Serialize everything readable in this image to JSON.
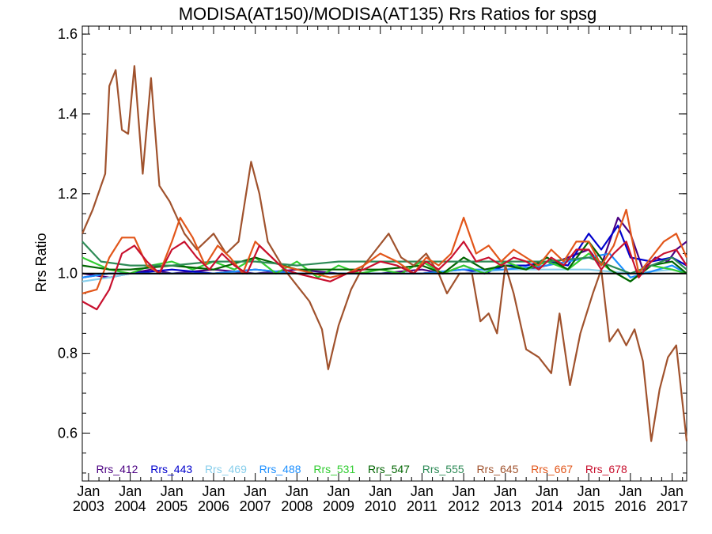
{
  "chart_data": {
    "type": "line",
    "title": "MODISA(AT150)/MODISA(AT135)  Rrs Ratios for spsg",
    "xlabel": "",
    "ylabel": "Rrs Ratio",
    "xlim": [
      2002.85,
      2017.35
    ],
    "ylim": [
      0.48,
      1.62
    ],
    "yticks": [
      0.6,
      0.8,
      1.0,
      1.2,
      1.4,
      1.6
    ],
    "ytick_labels": [
      "0.6",
      "0.8",
      "1.0",
      "1.2",
      "1.4",
      "1.6"
    ],
    "xticks": [
      2003,
      2004,
      2005,
      2006,
      2007,
      2008,
      2009,
      2010,
      2011,
      2012,
      2013,
      2014,
      2015,
      2016,
      2017
    ],
    "xtick_labels": [
      [
        "Jan",
        "2003"
      ],
      [
        "Jan",
        "2004"
      ],
      [
        "Jan",
        "2005"
      ],
      [
        "Jan",
        "2006"
      ],
      [
        "Jan",
        "2007"
      ],
      [
        "Jan",
        "2008"
      ],
      [
        "Jan",
        "2009"
      ],
      [
        "Jan",
        "2010"
      ],
      [
        "Jan",
        "2011"
      ],
      [
        "Jan",
        "2012"
      ],
      [
        "Jan",
        "2013"
      ],
      [
        "Jan",
        "2014"
      ],
      [
        "Jan",
        "2015"
      ],
      [
        "Jan",
        "2016"
      ],
      [
        "Jan",
        "2017"
      ]
    ],
    "reference_line": 1.0,
    "legend_position": "bottom",
    "series": [
      {
        "name": "Rrs_412",
        "color": "#4b0082",
        "x": [
          2002.85,
          2003.5,
          2004.0,
          2004.5,
          2005.0,
          2006.0,
          2007.0,
          2008.0,
          2009.0,
          2010.0,
          2011.0,
          2011.5,
          2012.0,
          2012.5,
          2013.0,
          2013.5,
          2014.0,
          2014.5,
          2015.0,
          2015.3,
          2015.7,
          2016.0,
          2016.3,
          2016.6,
          2016.9,
          2017.1,
          2017.35
        ],
        "y": [
          1.0,
          0.99,
          1.0,
          1.01,
          1.0,
          1.01,
          1.0,
          1.01,
          1.0,
          1.0,
          1.01,
          1.0,
          1.02,
          1.0,
          1.02,
          1.01,
          1.02,
          1.04,
          1.06,
          1.02,
          1.14,
          1.1,
          1.01,
          1.04,
          1.03,
          1.06,
          1.08
        ]
      },
      {
        "name": "Rrs_443",
        "color": "#0000cd",
        "x": [
          2002.85,
          2003.5,
          2004.0,
          2005.0,
          2006.0,
          2007.0,
          2008.0,
          2009.0,
          2010.0,
          2011.0,
          2012.0,
          2012.5,
          2013.0,
          2013.5,
          2014.0,
          2014.5,
          2015.0,
          2015.3,
          2015.7,
          2016.0,
          2016.5,
          2017.0,
          2017.35
        ],
        "y": [
          0.99,
          1.0,
          1.0,
          1.01,
          1.0,
          1.01,
          1.0,
          1.0,
          1.0,
          1.0,
          1.01,
          1.0,
          1.02,
          1.02,
          1.03,
          1.02,
          1.1,
          1.06,
          1.12,
          1.04,
          1.03,
          1.04,
          1.02
        ]
      },
      {
        "name": "Rrs_469",
        "color": "#87ceeb",
        "x": [
          2002.85,
          2003.5,
          2004.0,
          2005.0,
          2006.0,
          2007.0,
          2008.0,
          2009.0,
          2010.0,
          2011.0,
          2012.0,
          2013.0,
          2014.0,
          2015.0,
          2016.0,
          2017.0,
          2017.35
        ],
        "y": [
          0.98,
          0.99,
          1.0,
          1.0,
          1.0,
          1.0,
          1.0,
          1.0,
          1.0,
          1.0,
          1.0,
          1.01,
          1.01,
          1.01,
          1.0,
          1.01,
          1.0
        ]
      },
      {
        "name": "Rrs_488",
        "color": "#1e90ff",
        "x": [
          2002.85,
          2003.5,
          2004.0,
          2005.0,
          2006.0,
          2007.0,
          2008.0,
          2009.0,
          2010.0,
          2011.0,
          2012.0,
          2013.0,
          2014.0,
          2015.0,
          2015.5,
          2016.0,
          2017.0,
          2017.35
        ],
        "y": [
          0.99,
          1.0,
          1.0,
          1.0,
          1.0,
          1.01,
          1.0,
          1.0,
          1.0,
          1.0,
          1.01,
          1.01,
          1.02,
          1.04,
          1.05,
          0.99,
          1.02,
          1.0
        ]
      },
      {
        "name": "Rrs_531",
        "color": "#32cd32",
        "x": [
          2002.85,
          2003.5,
          2004.0,
          2004.5,
          2005.0,
          2005.5,
          2006.0,
          2006.5,
          2007.0,
          2007.5,
          2008.0,
          2008.5,
          2009.0,
          2009.5,
          2010.0,
          2010.5,
          2011.0,
          2011.5,
          2012.0,
          2012.5,
          2013.0,
          2013.5,
          2014.0,
          2014.5,
          2015.0,
          2015.5,
          2016.0,
          2016.5,
          2017.0,
          2017.35
        ],
        "y": [
          1.04,
          1.01,
          1.0,
          1.02,
          1.03,
          1.01,
          1.03,
          1.01,
          1.04,
          1.0,
          1.03,
          0.99,
          1.02,
          1.0,
          1.01,
          1.0,
          1.03,
          1.0,
          1.02,
          1.0,
          1.03,
          1.01,
          1.03,
          1.01,
          1.05,
          1.01,
          0.98,
          1.02,
          1.01,
          1.0
        ]
      },
      {
        "name": "Rrs_547",
        "color": "#006400",
        "x": [
          2002.85,
          2003.5,
          2004.0,
          2005.0,
          2006.0,
          2007.0,
          2008.0,
          2009.0,
          2010.0,
          2011.0,
          2011.5,
          2012.0,
          2012.5,
          2013.0,
          2013.5,
          2014.0,
          2014.5,
          2015.0,
          2015.5,
          2016.0,
          2016.5,
          2017.0,
          2017.35
        ],
        "y": [
          1.02,
          1.01,
          1.01,
          1.02,
          1.01,
          1.04,
          1.01,
          1.01,
          1.01,
          1.02,
          1.0,
          1.04,
          1.01,
          1.02,
          1.01,
          1.04,
          1.01,
          1.08,
          1.01,
          0.98,
          1.02,
          1.03,
          1.0
        ]
      },
      {
        "name": "Rrs_555",
        "color": "#2e8b57",
        "x": [
          2002.85,
          2003.3,
          2004.0,
          2005.0,
          2006.0,
          2007.0,
          2008.0,
          2009.0,
          2010.0,
          2011.0,
          2012.0,
          2013.0,
          2014.0,
          2015.0,
          2016.0,
          2017.0,
          2017.35
        ],
        "y": [
          1.08,
          1.03,
          1.02,
          1.02,
          1.03,
          1.03,
          1.02,
          1.03,
          1.03,
          1.03,
          1.03,
          1.03,
          1.03,
          1.04,
          1.0,
          1.04,
          1.01
        ]
      },
      {
        "name": "Rrs_645",
        "color": "#a0522d",
        "x": [
          2002.85,
          2003.1,
          2003.4,
          2003.5,
          2003.65,
          2003.8,
          2003.95,
          2004.1,
          2004.3,
          2004.5,
          2004.7,
          2004.95,
          2005.3,
          2005.6,
          2006.0,
          2006.3,
          2006.6,
          2006.9,
          2007.1,
          2007.3,
          2007.7,
          2008.0,
          2008.3,
          2008.6,
          2008.75,
          2009.0,
          2009.3,
          2009.6,
          2009.9,
          2010.2,
          2010.5,
          2010.8,
          2011.1,
          2011.4,
          2011.6,
          2011.9,
          2012.2,
          2012.4,
          2012.6,
          2012.8,
          2013.0,
          2013.2,
          2013.5,
          2013.8,
          2014.1,
          2014.3,
          2014.55,
          2014.8,
          2015.1,
          2015.3,
          2015.5,
          2015.7,
          2015.9,
          2016.1,
          2016.3,
          2016.5,
          2016.7,
          2016.9,
          2017.1,
          2017.35
        ],
        "y": [
          1.1,
          1.16,
          1.25,
          1.47,
          1.51,
          1.36,
          1.35,
          1.52,
          1.25,
          1.49,
          1.22,
          1.18,
          1.1,
          1.06,
          1.1,
          1.05,
          1.08,
          1.28,
          1.2,
          1.08,
          1.01,
          0.97,
          0.93,
          0.86,
          0.76,
          0.87,
          0.96,
          1.02,
          1.06,
          1.1,
          1.04,
          1.02,
          1.05,
          1.0,
          0.95,
          1.0,
          1.0,
          0.88,
          0.9,
          0.85,
          1.02,
          0.95,
          0.81,
          0.79,
          0.75,
          0.9,
          0.72,
          0.85,
          0.95,
          1.01,
          0.83,
          0.86,
          0.82,
          0.86,
          0.78,
          0.58,
          0.71,
          0.79,
          0.82,
          0.58
        ]
      },
      {
        "name": "Rrs_667",
        "color": "#e2561a",
        "x": [
          2002.85,
          2003.2,
          2003.5,
          2003.8,
          2004.1,
          2004.4,
          2004.7,
          2005.0,
          2005.2,
          2005.5,
          2005.8,
          2006.1,
          2006.4,
          2006.7,
          2007.0,
          2007.3,
          2007.6,
          2008.0,
          2008.4,
          2008.8,
          2009.2,
          2009.6,
          2010.0,
          2010.4,
          2010.8,
          2011.1,
          2011.4,
          2011.7,
          2012.0,
          2012.3,
          2012.6,
          2012.9,
          2013.2,
          2013.5,
          2013.8,
          2014.1,
          2014.4,
          2014.7,
          2015.0,
          2015.3,
          2015.6,
          2015.9,
          2016.2,
          2016.5,
          2016.8,
          2017.1,
          2017.35
        ],
        "y": [
          0.95,
          0.96,
          1.04,
          1.09,
          1.09,
          1.02,
          1.0,
          1.08,
          1.14,
          1.09,
          1.02,
          1.07,
          1.04,
          1.0,
          1.08,
          1.05,
          1.02,
          1.01,
          1.0,
          0.99,
          1.0,
          1.02,
          1.05,
          1.03,
          1.0,
          1.04,
          1.02,
          1.05,
          1.14,
          1.05,
          1.07,
          1.03,
          1.06,
          1.04,
          1.02,
          1.06,
          1.03,
          1.08,
          1.08,
          1.02,
          1.07,
          1.16,
          1.0,
          1.04,
          1.08,
          1.1,
          1.04
        ]
      },
      {
        "name": "Rrs_678",
        "color": "#c8102e",
        "x": [
          2002.85,
          2003.2,
          2003.5,
          2003.8,
          2004.1,
          2004.4,
          2004.7,
          2005.0,
          2005.3,
          2005.6,
          2005.9,
          2006.2,
          2006.5,
          2006.8,
          2007.1,
          2007.4,
          2007.7,
          2008.0,
          2008.4,
          2008.8,
          2009.2,
          2009.6,
          2010.0,
          2010.4,
          2010.8,
          2011.1,
          2011.4,
          2011.7,
          2012.0,
          2012.3,
          2012.6,
          2012.9,
          2013.2,
          2013.5,
          2013.8,
          2014.1,
          2014.4,
          2014.7,
          2015.0,
          2015.3,
          2015.6,
          2015.9,
          2016.2,
          2016.5,
          2016.8,
          2017.1,
          2017.35
        ],
        "y": [
          0.93,
          0.91,
          0.96,
          1.05,
          1.07,
          1.03,
          1.0,
          1.06,
          1.08,
          1.04,
          1.01,
          1.05,
          1.02,
          1.0,
          1.07,
          1.04,
          1.01,
          1.0,
          0.99,
          0.98,
          1.0,
          1.01,
          1.03,
          1.02,
          1.0,
          1.03,
          1.01,
          1.04,
          1.08,
          1.03,
          1.04,
          1.02,
          1.04,
          1.03,
          1.01,
          1.04,
          1.02,
          1.06,
          1.06,
          1.01,
          1.05,
          1.08,
          0.99,
          1.03,
          1.05,
          1.06,
          1.02
        ]
      }
    ]
  }
}
